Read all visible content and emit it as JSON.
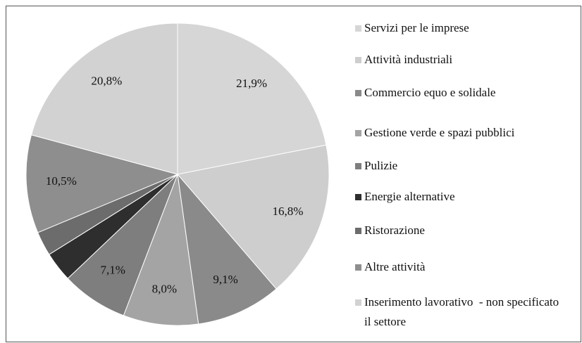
{
  "chart_data": {
    "type": "pie",
    "categories": [
      "Servizi per le imprese",
      "Attività industriali",
      "Commercio equo e solidale",
      "Gestione verde e spazi pubblici",
      "Pulizie",
      "Energie alternative",
      "Ristorazione",
      "Altre attività",
      "Inserimento lavorativo  - non specificato il settore"
    ],
    "values": [
      21.9,
      16.8,
      9.1,
      8.0,
      7.1,
      3.2,
      2.6,
      10.5,
      20.8
    ],
    "value_labels": [
      "21,9%",
      "16,8%",
      "9,1%",
      "8,0%",
      "7,1%",
      null,
      null,
      "10,5%",
      "20,8%"
    ],
    "colors": [
      "#d6d6d6",
      "#cecece",
      "#8a8a8a",
      "#a4a4a4",
      "#7e7e7e",
      "#2e2e2e",
      "#6c6c6c",
      "#8e8e8e",
      "#d2d2d2"
    ]
  }
}
